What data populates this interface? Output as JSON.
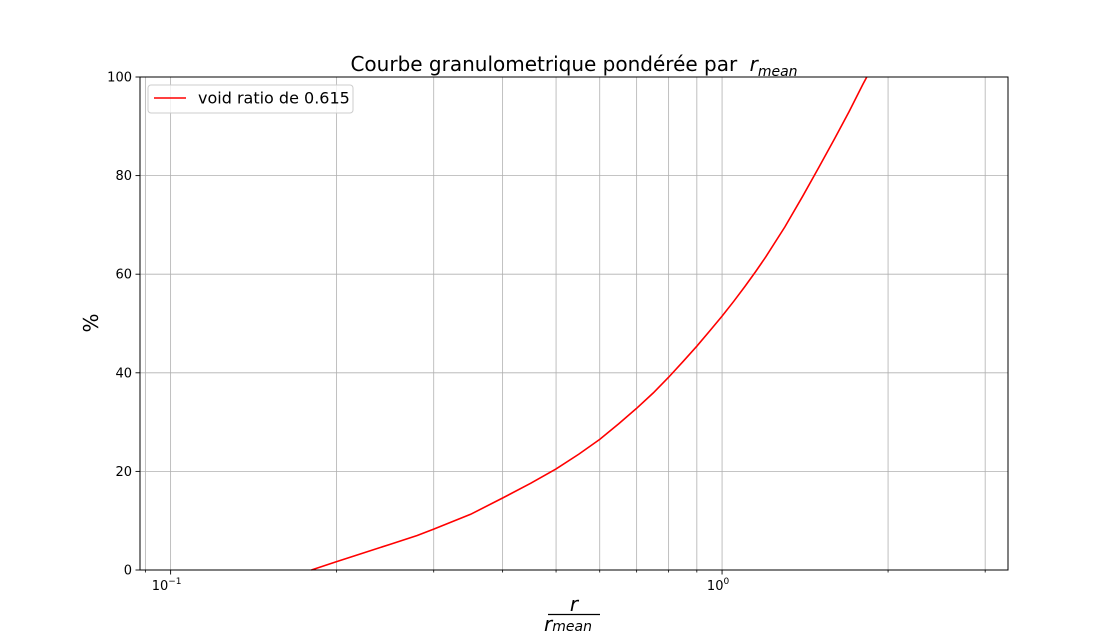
{
  "chart_data": {
    "type": "line",
    "title": "Courbe granulometrique pondérée par",
    "title_math": {
      "base": "r",
      "sub": "mean"
    },
    "xlabel_math": {
      "numerator": "r",
      "denominator_base": "r",
      "denominator_sub": "mean"
    },
    "ylabel": "%",
    "xscale": "log",
    "xlim": [
      0.088,
      3.3
    ],
    "ylim": [
      0,
      100
    ],
    "x_major_ticks": [
      {
        "value": 0.1,
        "base": "10",
        "exp": "−1"
      },
      {
        "value": 1,
        "base": "10",
        "exp": "0"
      }
    ],
    "y_ticks": [
      0,
      20,
      40,
      60,
      80,
      100
    ],
    "y_tick_labels": [
      "0",
      "20",
      "40",
      "60",
      "80",
      "100"
    ],
    "grid": true,
    "legend_position": "upper-left",
    "series": [
      {
        "name": "void ratio de 0.615",
        "color": "#ff0000",
        "x": [
          0.18,
          0.2,
          0.22,
          0.25,
          0.28,
          0.3,
          0.35,
          0.4,
          0.45,
          0.5,
          0.55,
          0.6,
          0.65,
          0.7,
          0.75,
          0.8,
          0.85,
          0.9,
          0.95,
          1.0,
          1.05,
          1.1,
          1.15,
          1.2,
          1.3,
          1.4,
          1.5,
          1.6,
          1.7,
          1.8,
          1.83
        ],
        "y": [
          0,
          1.7,
          3.2,
          5.2,
          7.0,
          8.3,
          11.3,
          14.6,
          17.6,
          20.5,
          23.5,
          26.5,
          29.7,
          32.8,
          35.9,
          39.1,
          42.3,
          45.4,
          48.5,
          51.5,
          54.5,
          57.5,
          60.5,
          63.5,
          69.6,
          75.8,
          81.8,
          87.5,
          93.0,
          98.5,
          100
        ]
      }
    ]
  }
}
